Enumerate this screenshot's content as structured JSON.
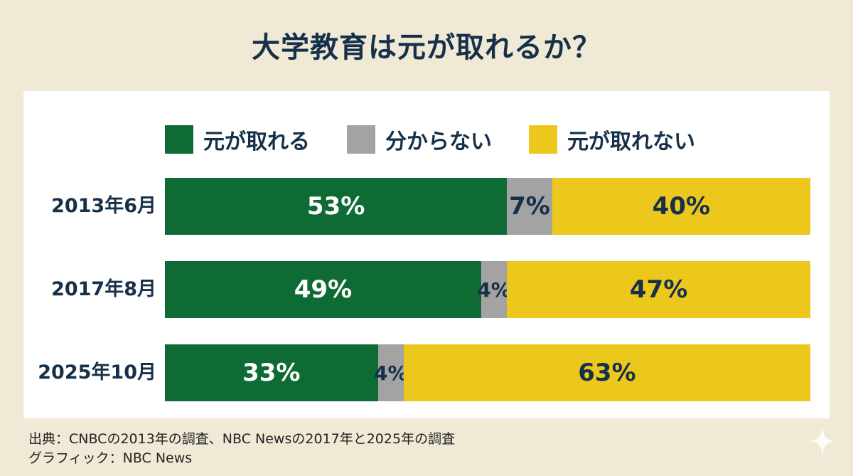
{
  "title": "大学教育は元が取れるか？",
  "colors": {
    "background": "#efe9d6",
    "panel": "#ffffff",
    "green": "#0f6b34",
    "gray": "#a3a3a3",
    "yellow": "#edc81c",
    "text": "#16304a"
  },
  "chart_data": {
    "type": "bar",
    "orientation": "horizontal",
    "stacked": true,
    "normalized_percent": true,
    "categories": [
      "2013年6月",
      "2017年8月",
      "2025年10月"
    ],
    "series": [
      {
        "name": "元が取れる",
        "color": "#0f6b34",
        "values": [
          53,
          49,
          33
        ],
        "labels": [
          "53%",
          "49%",
          "33%"
        ],
        "label_color": "#ffffff"
      },
      {
        "name": "分からない",
        "color": "#a3a3a3",
        "values": [
          7,
          4,
          4
        ],
        "labels": [
          "7%",
          "4%",
          "4%"
        ],
        "label_color": "#16304a"
      },
      {
        "name": "元が取れない",
        "color": "#edc81c",
        "values": [
          40,
          47,
          63
        ],
        "labels": [
          "40%",
          "47%",
          "63%"
        ],
        "label_color": "#16304a"
      }
    ],
    "legend_position": "top",
    "grid": false
  },
  "footer": {
    "source": "出典：CNBCの2013年の調査、NBC Newsの2017年と2025年の調査",
    "graphic": "グラフィック：NBC News"
  },
  "sparkle_icon": "sparkle-icon"
}
